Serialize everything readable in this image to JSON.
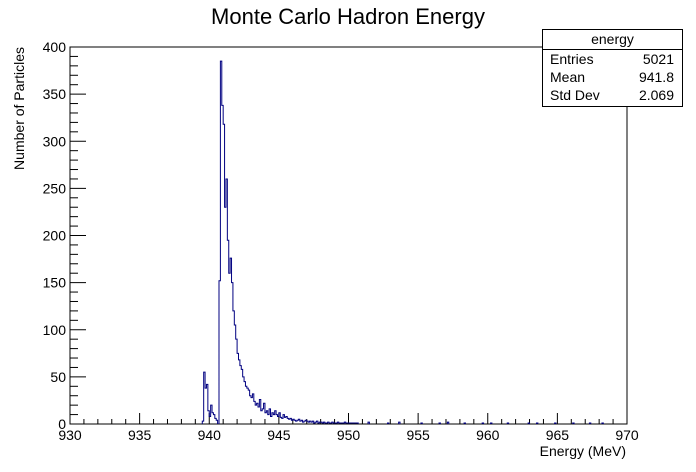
{
  "chart_data": {
    "type": "histogram",
    "title": "Monte Carlo Hadron Energy",
    "xlabel": "Energy (MeV)",
    "ylabel": "Number of Particles",
    "xlim": [
      930,
      970
    ],
    "ylim": [
      0,
      400
    ],
    "bin_width": 0.1,
    "x_ticks": [
      930,
      935,
      940,
      945,
      950,
      955,
      960,
      965,
      970
    ],
    "y_ticks": [
      0,
      50,
      100,
      150,
      200,
      250,
      300,
      350,
      400
    ],
    "line_color": "#000080",
    "bins_start": 939.5,
    "bins": [
      {
        "x": 939.5,
        "values": [
          3,
          55,
          38,
          42,
          14,
          8,
          20,
          12,
          10,
          6,
          4
        ]
      },
      {
        "x": 940.7,
        "values": [
          152,
          385,
          338,
          318,
          230,
          260,
          195,
          160,
          176,
          150,
          120,
          105,
          90,
          75,
          68,
          62,
          58,
          50,
          45,
          40,
          38,
          36,
          30,
          28,
          32,
          24,
          20,
          22,
          18,
          26,
          14,
          16,
          22,
          12,
          14,
          10,
          16,
          8,
          12,
          10,
          14,
          10,
          8,
          12,
          7,
          6,
          10,
          7,
          8,
          6,
          5,
          6,
          4,
          5,
          4,
          3,
          4,
          5,
          3,
          4,
          2,
          3,
          4,
          3,
          2,
          3,
          2,
          3,
          1,
          2,
          3,
          1,
          2,
          2,
          1,
          2,
          1,
          1,
          2,
          1,
          1,
          2,
          1,
          1,
          1,
          2,
          1,
          1,
          1,
          1,
          2,
          1,
          1,
          1,
          1,
          1,
          1,
          1,
          1,
          1
        ]
      }
    ],
    "sparse_bins": [
      [
        951.4,
        2
      ],
      [
        952.8,
        1
      ],
      [
        953.6,
        2
      ],
      [
        955.2,
        1
      ],
      [
        956.5,
        1
      ],
      [
        957.1,
        2
      ],
      [
        958.3,
        1
      ],
      [
        959.6,
        1
      ],
      [
        960.2,
        1
      ],
      [
        961.4,
        1
      ],
      [
        962.9,
        1
      ],
      [
        963.5,
        1
      ],
      [
        964.8,
        1
      ],
      [
        966.1,
        1
      ],
      [
        967.3,
        1
      ],
      [
        968.2,
        1
      ]
    ]
  },
  "stats_box": {
    "title": "energy",
    "rows": [
      {
        "label": "Entries",
        "value": "5021"
      },
      {
        "label": "Mean",
        "value": "941.8"
      },
      {
        "label": "Std Dev",
        "value": "2.069"
      }
    ]
  }
}
